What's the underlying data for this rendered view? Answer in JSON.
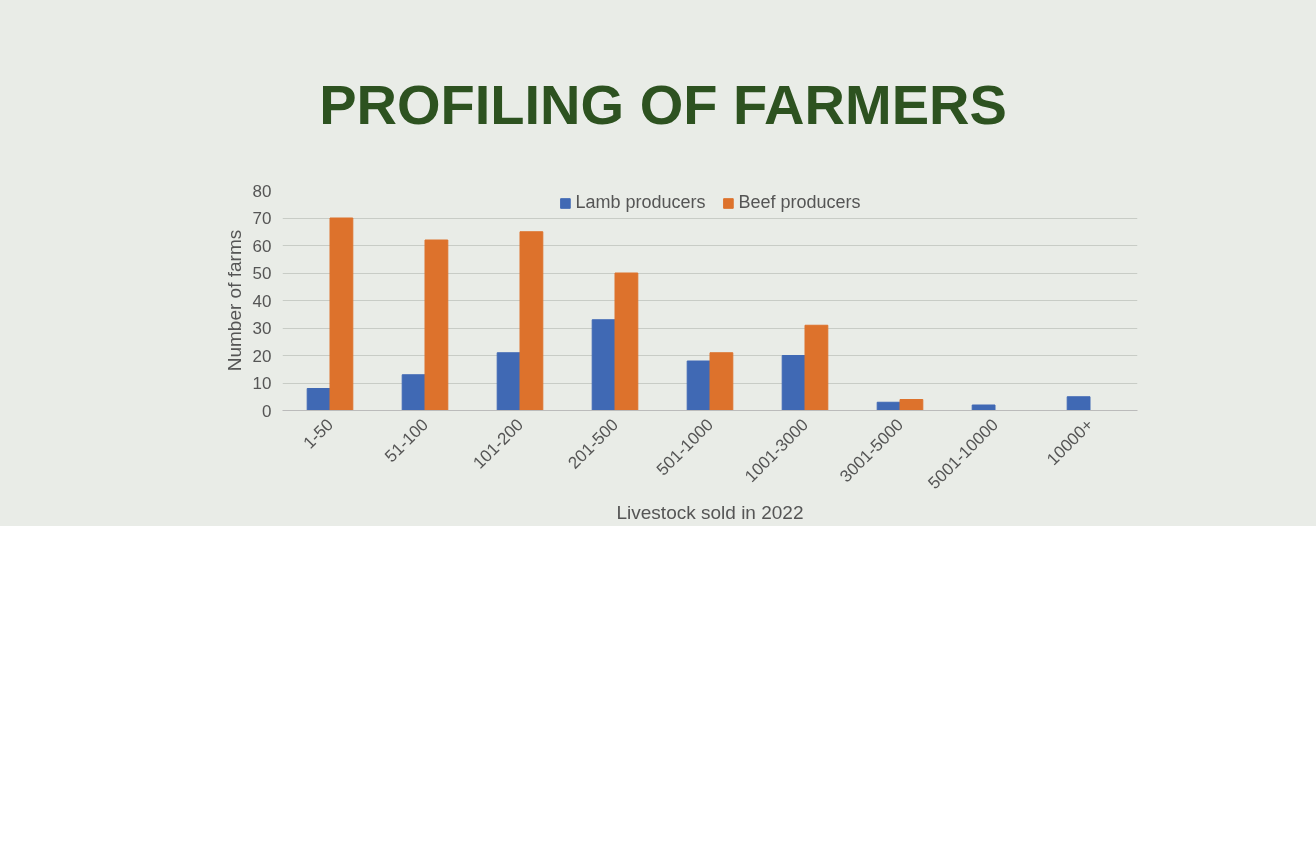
{
  "chart_data": {
    "type": "bar",
    "title": "PROFILING OF FARMERS",
    "xlabel": "Livestock sold in 2022",
    "ylabel": "Number of farms",
    "categories": [
      "1-50",
      "51-100",
      "101-200",
      "201-500",
      "501-1000",
      "1001-3000",
      "3001-5000",
      "5001-10000",
      "10000+"
    ],
    "series": [
      {
        "name": "Lamb producers",
        "color": "#4069b4",
        "values": [
          8,
          13,
          21,
          33,
          18,
          20,
          3,
          2,
          5
        ]
      },
      {
        "name": "Beef producers",
        "color": "#dd722c",
        "values": [
          70,
          62,
          65,
          50,
          21,
          31,
          4,
          0,
          0
        ]
      }
    ],
    "ylim": [
      0,
      80
    ],
    "yticks": [
      0,
      10,
      20,
      30,
      40,
      50,
      60,
      70,
      80
    ],
    "grid": "y",
    "legend": "top"
  }
}
